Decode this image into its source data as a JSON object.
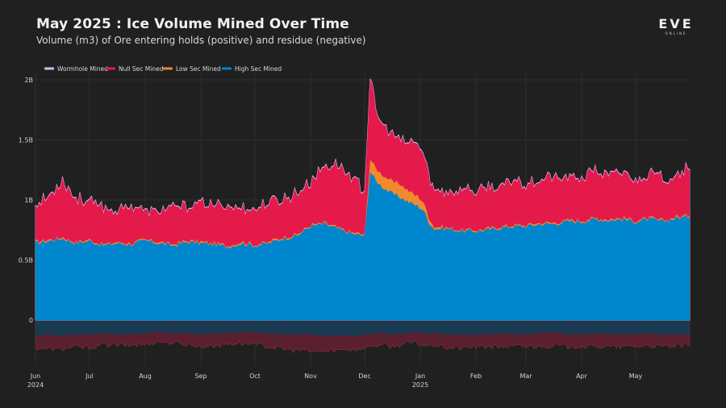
{
  "header": {
    "title": "May 2025 : Ice Volume Mined Over Time",
    "subtitle": "Volume (m3) of Ore entering holds (positive) and residue (negative)",
    "logo_main": "EVE",
    "logo_sub": "ONLINE"
  },
  "chart_data": {
    "type": "area",
    "stacked": true,
    "title": "May 2025 : Ice Volume Mined Over Time",
    "subtitle": "Volume (m3) of Ore entering holds (positive) and residue (negative)",
    "xlabel": "",
    "ylabel": "",
    "ylim": [
      -0.35,
      2.05
    ],
    "y_unit": "B m3",
    "yticks": [
      {
        "value": 0,
        "label": "0"
      },
      {
        "value": 0.5,
        "label": "0.5B"
      },
      {
        "value": 1,
        "label": "1B"
      },
      {
        "value": 1.5,
        "label": "1.5B"
      },
      {
        "value": 2,
        "label": "2B"
      }
    ],
    "xticks": [
      {
        "month": 0,
        "label": "Jun",
        "sublabel": "2024"
      },
      {
        "month": 1,
        "label": "Jul",
        "sublabel": ""
      },
      {
        "month": 2,
        "label": "Aug",
        "sublabel": ""
      },
      {
        "month": 3,
        "label": "Sep",
        "sublabel": ""
      },
      {
        "month": 4,
        "label": "Oct",
        "sublabel": ""
      },
      {
        "month": 5,
        "label": "Nov",
        "sublabel": ""
      },
      {
        "month": 6,
        "label": "Dec",
        "sublabel": ""
      },
      {
        "month": 7,
        "label": "Jan",
        "sublabel": "2025"
      },
      {
        "month": 8,
        "label": "Feb",
        "sublabel": ""
      },
      {
        "month": 9,
        "label": "Mar",
        "sublabel": ""
      },
      {
        "month": 10,
        "label": "Apr",
        "sublabel": ""
      },
      {
        "month": 11,
        "label": "May",
        "sublabel": ""
      }
    ],
    "x_range_months": [
      0,
      12
    ],
    "grid": true,
    "legend_position": "top-left",
    "legend": [
      {
        "name": "Wormhole Mined",
        "color": "#d9b8f0"
      },
      {
        "name": "Null Sec Mined",
        "color": "#e31a4a"
      },
      {
        "name": "Low Sec Mined",
        "color": "#f08a2c"
      },
      {
        "name": "High Sec Mined",
        "color": "#0086cc"
      }
    ],
    "x_months": [
      0,
      0.25,
      0.5,
      0.75,
      1,
      1.25,
      1.5,
      1.75,
      2,
      2.25,
      2.5,
      2.75,
      3,
      3.25,
      3.5,
      3.75,
      4,
      4.25,
      4.5,
      4.75,
      5,
      5.25,
      5.5,
      5.75,
      6,
      6.1,
      6.2,
      6.35,
      6.5,
      6.65,
      6.8,
      6.95,
      7.05,
      7.15,
      7.25,
      7.5,
      7.75,
      8,
      8.25,
      8.5,
      8.75,
      9,
      9.25,
      9.5,
      9.75,
      10,
      10.25,
      10.5,
      10.75,
      11,
      11.25,
      11.5,
      11.75,
      12
    ],
    "series": [
      {
        "name": "High Sec Mined",
        "color": "#0086cc",
        "values": [
          0.64,
          0.66,
          0.68,
          0.64,
          0.66,
          0.62,
          0.64,
          0.63,
          0.66,
          0.64,
          0.62,
          0.65,
          0.64,
          0.63,
          0.61,
          0.64,
          0.62,
          0.64,
          0.68,
          0.7,
          0.78,
          0.8,
          0.76,
          0.72,
          0.7,
          1.24,
          1.16,
          1.1,
          1.05,
          1.02,
          0.98,
          0.95,
          0.92,
          0.82,
          0.76,
          0.76,
          0.74,
          0.74,
          0.75,
          0.77,
          0.78,
          0.78,
          0.8,
          0.8,
          0.82,
          0.82,
          0.84,
          0.83,
          0.84,
          0.82,
          0.84,
          0.82,
          0.85,
          0.86
        ]
      },
      {
        "name": "Low Sec Mined",
        "color": "#f08a2c",
        "values": [
          0.01,
          0.01,
          0.01,
          0.01,
          0.01,
          0.01,
          0.01,
          0.01,
          0.01,
          0.01,
          0.01,
          0.01,
          0.01,
          0.01,
          0.01,
          0.01,
          0.01,
          0.01,
          0.01,
          0.01,
          0.01,
          0.01,
          0.01,
          0.01,
          0.01,
          0.1,
          0.1,
          0.1,
          0.1,
          0.11,
          0.09,
          0.08,
          0.07,
          0.04,
          0.02,
          0.01,
          0.01,
          0.01,
          0.01,
          0.01,
          0.01,
          0.01,
          0.01,
          0.01,
          0.01,
          0.01,
          0.01,
          0.01,
          0.01,
          0.01,
          0.01,
          0.01,
          0.01,
          0.01
        ]
      },
      {
        "name": "Null Sec Mined",
        "color": "#e31a4a",
        "values": [
          0.3,
          0.36,
          0.48,
          0.36,
          0.32,
          0.3,
          0.26,
          0.32,
          0.22,
          0.26,
          0.3,
          0.28,
          0.32,
          0.3,
          0.34,
          0.28,
          0.3,
          0.32,
          0.32,
          0.34,
          0.36,
          0.46,
          0.52,
          0.46,
          0.36,
          0.7,
          0.46,
          0.42,
          0.38,
          0.36,
          0.4,
          0.44,
          0.4,
          0.36,
          0.3,
          0.3,
          0.34,
          0.32,
          0.34,
          0.32,
          0.38,
          0.34,
          0.36,
          0.38,
          0.34,
          0.36,
          0.4,
          0.36,
          0.38,
          0.34,
          0.36,
          0.34,
          0.36,
          0.38
        ]
      },
      {
        "name": "Wormhole Mined",
        "color": "#d9b8f0",
        "values": [
          0.005,
          0.005,
          0.005,
          0.005,
          0.005,
          0.005,
          0.005,
          0.005,
          0.005,
          0.005,
          0.005,
          0.005,
          0.005,
          0.005,
          0.005,
          0.005,
          0.005,
          0.005,
          0.005,
          0.005,
          0.005,
          0.005,
          0.005,
          0.005,
          0.005,
          0.005,
          0.005,
          0.005,
          0.005,
          0.005,
          0.005,
          0.005,
          0.005,
          0.005,
          0.005,
          0.005,
          0.005,
          0.005,
          0.005,
          0.005,
          0.005,
          0.005,
          0.005,
          0.005,
          0.005,
          0.005,
          0.005,
          0.005,
          0.005,
          0.005,
          0.005,
          0.005,
          0.005,
          0.005
        ]
      }
    ],
    "residue_series": [
      {
        "name": "High Sec Residue",
        "color": "#1a3a52",
        "values": [
          -0.13,
          -0.12,
          -0.13,
          -0.12,
          -0.12,
          -0.11,
          -0.12,
          -0.12,
          -0.11,
          -0.1,
          -0.11,
          -0.11,
          -0.12,
          -0.11,
          -0.11,
          -0.1,
          -0.1,
          -0.11,
          -0.12,
          -0.12,
          -0.12,
          -0.13,
          -0.13,
          -0.13,
          -0.12,
          -0.12,
          -0.11,
          -0.11,
          -0.12,
          -0.11,
          -0.11,
          -0.1,
          -0.11,
          -0.11,
          -0.11,
          -0.12,
          -0.12,
          -0.12,
          -0.12,
          -0.11,
          -0.12,
          -0.12,
          -0.11,
          -0.1,
          -0.12,
          -0.12,
          -0.11,
          -0.12,
          -0.11,
          -0.12,
          -0.11,
          -0.12,
          -0.12,
          -0.12
        ]
      },
      {
        "name": "Null Sec Residue",
        "color": "#5a2030",
        "values": [
          -0.1,
          -0.12,
          -0.11,
          -0.1,
          -0.11,
          -0.09,
          -0.09,
          -0.09,
          -0.09,
          -0.08,
          -0.08,
          -0.09,
          -0.1,
          -0.1,
          -0.09,
          -0.09,
          -0.1,
          -0.11,
          -0.12,
          -0.13,
          -0.14,
          -0.13,
          -0.12,
          -0.11,
          -0.11,
          -0.1,
          -0.1,
          -0.1,
          -0.1,
          -0.09,
          -0.08,
          -0.09,
          -0.1,
          -0.1,
          -0.1,
          -0.11,
          -0.11,
          -0.1,
          -0.1,
          -0.11,
          -0.1,
          -0.1,
          -0.11,
          -0.11,
          -0.1,
          -0.1,
          -0.11,
          -0.1,
          -0.11,
          -0.1,
          -0.1,
          -0.1,
          -0.1,
          -0.09
        ]
      }
    ]
  }
}
